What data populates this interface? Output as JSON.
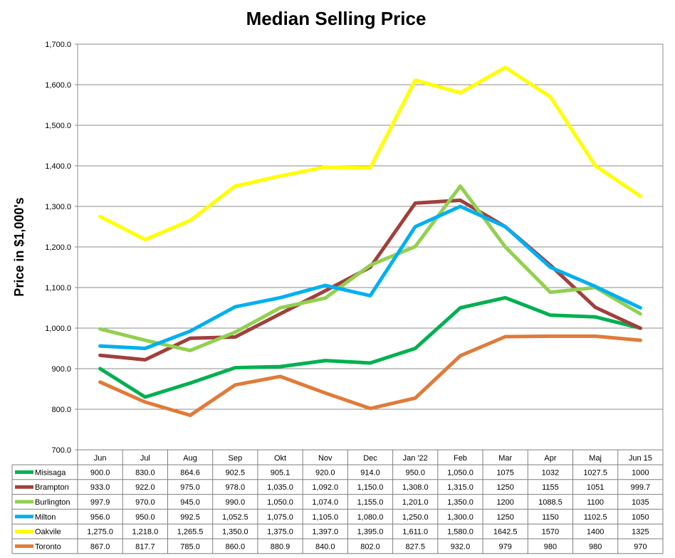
{
  "chart_data": {
    "type": "line",
    "title": "Median Selling Price",
    "ylabel": "Price in $1,000's",
    "xlabel": "",
    "ylim": [
      700,
      1700
    ],
    "ytick_step": 100,
    "ytick_labels": [
      "700.0",
      "800.0",
      "900.0",
      "1,000.0",
      "1,100.0",
      "1,200.0",
      "1,300.0",
      "1,400.0",
      "1,500.0",
      "1,600.0",
      "1,700.0"
    ],
    "grid": true,
    "legend": "data-table-below",
    "categories": [
      "Jun",
      "Jul",
      "Aug",
      "Sep",
      "Okt",
      "Nov",
      "Dec",
      "Jan '22",
      "Feb",
      "Mar",
      "Apr",
      "Maj",
      "Jun 15"
    ],
    "series": [
      {
        "name": "Misisaga",
        "color": "#00b050",
        "values": [
          900.0,
          830.0,
          864.6,
          902.5,
          905.1,
          920.0,
          914.0,
          950.0,
          1050.0,
          1075,
          1032,
          1027.5,
          1000
        ],
        "labels": [
          "900.0",
          "830.0",
          "864.6",
          "902.5",
          "905.1",
          "920.0",
          "914.0",
          "950.0",
          "1,050.0",
          "1075",
          "1032",
          "1027.5",
          "1000"
        ]
      },
      {
        "name": "Brampton",
        "color": "#a0403c",
        "values": [
          933.0,
          922.0,
          975.0,
          978.0,
          1035.0,
          1092.0,
          1150.0,
          1308.0,
          1315.0,
          1250,
          1155,
          1051,
          999.7
        ],
        "labels": [
          "933.0",
          "922.0",
          "975.0",
          "978.0",
          "1,035.0",
          "1,092.0",
          "1,150.0",
          "1,308.0",
          "1,315.0",
          "1250",
          "1155",
          "1051",
          "999.7"
        ]
      },
      {
        "name": "Burlington",
        "color": "#92d050",
        "values": [
          997.9,
          970.0,
          945.0,
          990.0,
          1050.0,
          1074.0,
          1155.0,
          1201.0,
          1350.0,
          1200,
          1088.5,
          1100,
          1035
        ],
        "labels": [
          "997.9",
          "970.0",
          "945.0",
          "990.0",
          "1,050.0",
          "1,074.0",
          "1,155.0",
          "1,201.0",
          "1,350.0",
          "1200",
          "1088.5",
          "1100",
          "1035"
        ]
      },
      {
        "name": "Milton",
        "color": "#00b0f0",
        "values": [
          956.0,
          950.0,
          992.5,
          1052.5,
          1075.0,
          1105.0,
          1080.0,
          1250.0,
          1300.0,
          1250,
          1150,
          1102.5,
          1050
        ],
        "labels": [
          "956.0",
          "950.0",
          "992.5",
          "1,052.5",
          "1,075.0",
          "1,105.0",
          "1,080.0",
          "1,250.0",
          "1,300.0",
          "1250",
          "1150",
          "1102.5",
          "1050"
        ]
      },
      {
        "name": "Oakvile",
        "color": "#ffff00",
        "values": [
          1275.0,
          1218.0,
          1265.5,
          1350.0,
          1375.0,
          1397.0,
          1395.0,
          1611.0,
          1580.0,
          1642.5,
          1570,
          1400,
          1325
        ],
        "labels": [
          "1,275.0",
          "1,218.0",
          "1,265.5",
          "1,350.0",
          "1,375.0",
          "1,397.0",
          "1,395.0",
          "1,611.0",
          "1,580.0",
          "1642.5",
          "1570",
          "1400",
          "1325"
        ]
      },
      {
        "name": "Toronto",
        "color": "#e07b39",
        "values": [
          867.0,
          817.7,
          785.0,
          860.0,
          880.9,
          840.0,
          802.0,
          827.5,
          932.0,
          979,
          980,
          980,
          970
        ],
        "labels": [
          "867.0",
          "817.7",
          "785.0",
          "860.0",
          "880.9",
          "840.0",
          "802.0",
          "827.5",
          "932.0",
          "979",
          "980",
          "980",
          "970"
        ]
      }
    ]
  }
}
